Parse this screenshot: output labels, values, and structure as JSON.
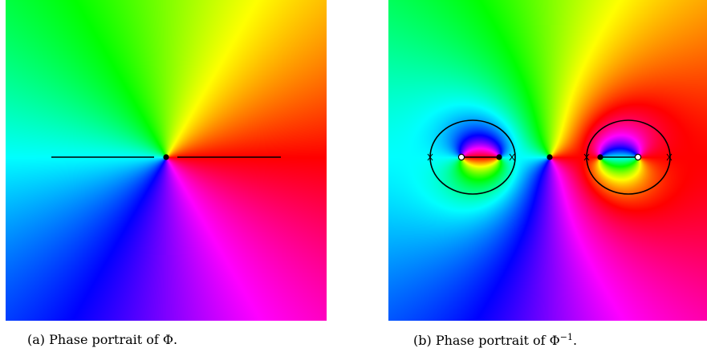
{
  "figures": [
    {
      "id": "a",
      "caption_label": "(a)",
      "caption_text": "Phase portrait of Φ."
    },
    {
      "id": "b",
      "caption_label": "(b)",
      "caption_text_prefix": "Phase portrait of Φ",
      "caption_sup": "−1",
      "caption_text_suffix": "."
    }
  ],
  "colors": {
    "curve": "#000000",
    "filled_point": "#000000",
    "open_point": "#ffffff"
  }
}
